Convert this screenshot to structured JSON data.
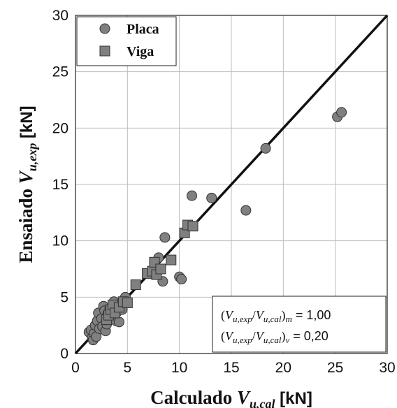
{
  "chart_data": {
    "type": "scatter",
    "xlabel": {
      "main": "Calculado ",
      "var": "V",
      "sub": "u,cal",
      "unit": " [kN]"
    },
    "ylabel": {
      "main": "Ensaiado ",
      "var": "V",
      "sub": "u,exp",
      "unit": " [kN]"
    },
    "xlim": [
      0,
      30
    ],
    "ylim": [
      0,
      30
    ],
    "xticks": [
      0,
      5,
      10,
      15,
      20,
      25,
      30
    ],
    "yticks": [
      0,
      5,
      10,
      15,
      20,
      25,
      30
    ],
    "grid": true,
    "legend_position": "top-left",
    "reference_line": {
      "from": [
        0,
        0
      ],
      "to": [
        30,
        30
      ]
    },
    "series": [
      {
        "name": "Placa",
        "marker": "circle",
        "color": "#808080",
        "points": [
          [
            1.3,
            1.9
          ],
          [
            1.5,
            2.1
          ],
          [
            1.6,
            1.4
          ],
          [
            1.7,
            1.2
          ],
          [
            1.8,
            1.8
          ],
          [
            1.9,
            2.5
          ],
          [
            2.0,
            1.5
          ],
          [
            2.1,
            2.9
          ],
          [
            2.2,
            3.6
          ],
          [
            2.3,
            2.2
          ],
          [
            2.5,
            3.1
          ],
          [
            2.6,
            2.4
          ],
          [
            2.7,
            4.2
          ],
          [
            2.8,
            3.8
          ],
          [
            2.9,
            2.0
          ],
          [
            3.0,
            2.6
          ],
          [
            3.1,
            3.5
          ],
          [
            3.3,
            4.0
          ],
          [
            3.5,
            3.2
          ],
          [
            3.7,
            4.6
          ],
          [
            3.9,
            2.9
          ],
          [
            4.0,
            3.7
          ],
          [
            4.2,
            2.8
          ],
          [
            4.4,
            4.5
          ],
          [
            4.5,
            3.9
          ],
          [
            4.8,
            5.0
          ],
          [
            8.0,
            8.5
          ],
          [
            8.4,
            6.4
          ],
          [
            8.6,
            10.3
          ],
          [
            10.0,
            6.8
          ],
          [
            10.2,
            6.6
          ],
          [
            11.2,
            14.0
          ],
          [
            13.1,
            13.8
          ],
          [
            16.4,
            12.7
          ],
          [
            18.3,
            18.2
          ],
          [
            25.2,
            21.0
          ],
          [
            25.6,
            21.4
          ]
        ]
      },
      {
        "name": "Viga",
        "marker": "square",
        "color": "#808080",
        "points": [
          [
            3.0,
            3.0
          ],
          [
            3.2,
            3.4
          ],
          [
            3.4,
            3.9
          ],
          [
            3.6,
            4.3
          ],
          [
            3.8,
            3.6
          ],
          [
            4.2,
            4.1
          ],
          [
            4.6,
            4.6
          ],
          [
            5.0,
            4.5
          ],
          [
            5.8,
            6.1
          ],
          [
            6.9,
            7.1
          ],
          [
            7.4,
            7.3
          ],
          [
            7.6,
            8.1
          ],
          [
            7.8,
            7.0
          ],
          [
            8.2,
            7.5
          ],
          [
            9.2,
            8.3
          ],
          [
            10.5,
            10.7
          ],
          [
            10.8,
            11.4
          ],
          [
            11.3,
            11.3
          ]
        ]
      }
    ],
    "stats": [
      {
        "num": "u,exp",
        "den": "u,cal",
        "suffix": "m",
        "value": "1,00"
      },
      {
        "num": "u,exp",
        "den": "u,cal",
        "suffix": "v",
        "value": "0,20"
      }
    ]
  }
}
